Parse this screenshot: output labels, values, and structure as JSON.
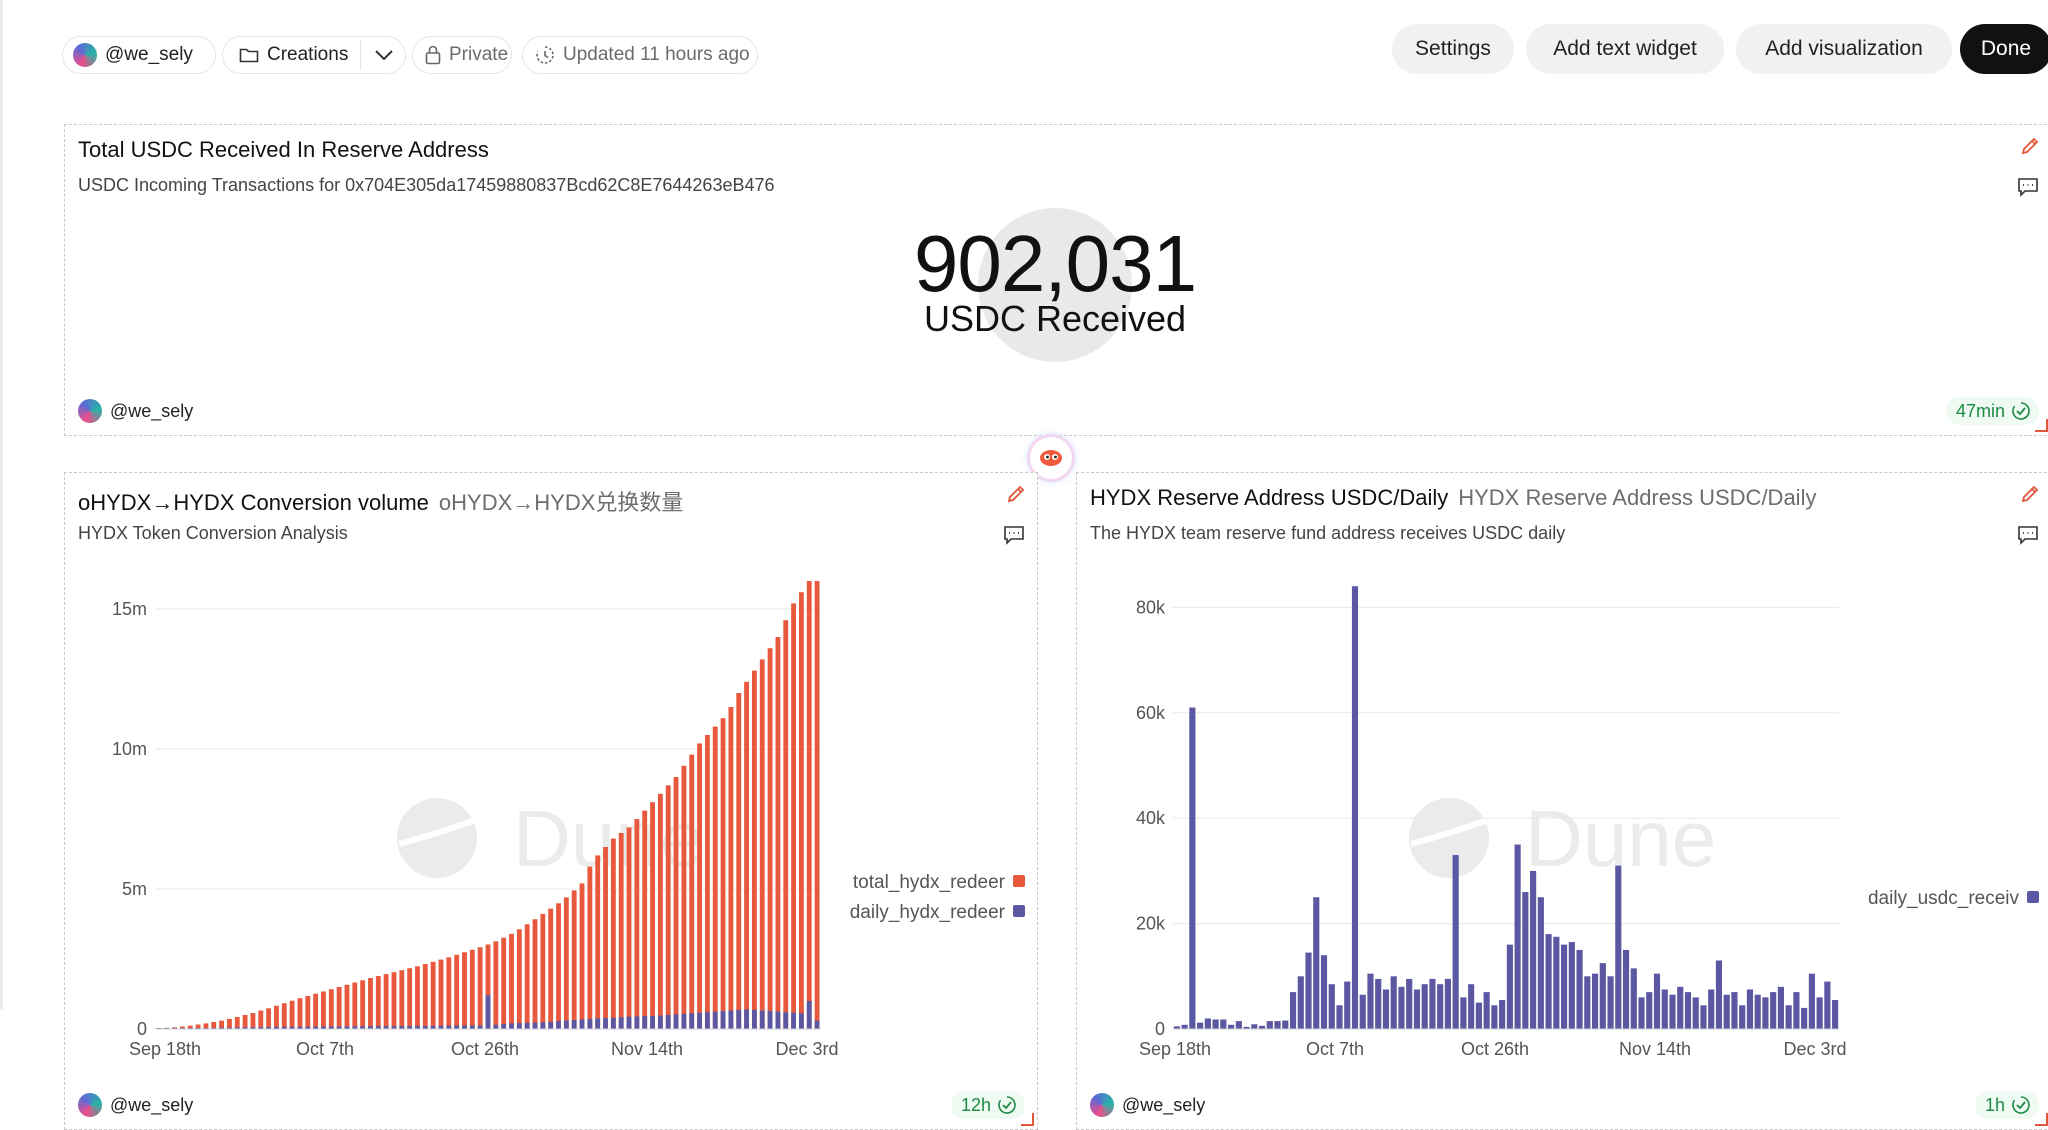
{
  "topbar": {
    "user": "@we_sely",
    "folder": "Creations",
    "privacy": "Private",
    "updated": "Updated 11 hours ago",
    "buttons": {
      "settings": "Settings",
      "add_text": "Add text widget",
      "add_viz": "Add visualization",
      "done": "Done"
    }
  },
  "counter_widget": {
    "title": "Total USDC Received In Reserve Address",
    "subtitle": "USDC Incoming Transactions for 0x704E305da17459880837Bcd62C8E7644263eB476",
    "value": "902,031",
    "label": "USDC Received",
    "author": "@we_sely",
    "refresh": "47min"
  },
  "conversion_widget": {
    "title": "oHYDX→HYDX Conversion volume",
    "title_alt": "oHYDX→HYDX兑换数量",
    "subtitle": "HYDX Token Conversion Analysis",
    "author": "@we_sely",
    "refresh": "12h",
    "watermark": "Dune"
  },
  "reserve_widget": {
    "title": "HYDX Reserve Address USDC/Daily",
    "title_alt": "HYDX Reserve Address USDC/Daily",
    "subtitle": "The HYDX team reserve fund address receives USDC daily",
    "author": "@we_sely",
    "refresh": "1h",
    "watermark": "Dune"
  },
  "colors": {
    "cumulative_bar": "#e8583d",
    "daily_bar": "#5b57a3",
    "refresh_badge_bg": "#eefaf2",
    "refresh_badge_text": "#1e8a45",
    "edit_icon": "#e0573a",
    "done_button": "#111111"
  },
  "icons": [
    "folder-icon",
    "chevron-down-icon",
    "lock-icon",
    "clock-icon",
    "pencil-icon",
    "comment-icon",
    "check-circle-icon",
    "dune-logo-icon"
  ],
  "chart_data": [
    {
      "type": "bar",
      "id": "conversion",
      "xlabel": "",
      "ylabel": "",
      "x_ticks": [
        "Sep 18th",
        "Oct 7th",
        "Oct 26th",
        "Nov 14th",
        "Dec 3rd"
      ],
      "y_ticks": [
        "0",
        "5m",
        "10m",
        "15m"
      ],
      "ylim": [
        0,
        16000000
      ],
      "legend_position": "right",
      "legend": [
        "total_hydx_redeer",
        "daily_hydx_redeer"
      ],
      "series": [
        {
          "name": "total_hydx_redeer",
          "values": [
            20000,
            40000,
            60000,
            90000,
            120000,
            160000,
            200000,
            250000,
            300000,
            360000,
            430000,
            500000,
            570000,
            660000,
            740000,
            830000,
            920000,
            1010000,
            1100000,
            1180000,
            1260000,
            1340000,
            1420000,
            1500000,
            1580000,
            1660000,
            1740000,
            1820000,
            1890000,
            1960000,
            2030000,
            2100000,
            2170000,
            2240000,
            2320000,
            2400000,
            2480000,
            2560000,
            2650000,
            2740000,
            2830000,
            2920000,
            3020000,
            3130000,
            3260000,
            3400000,
            3560000,
            3740000,
            3920000,
            4110000,
            4300000,
            4490000,
            4700000,
            4950000,
            5200000,
            5800000,
            6200000,
            6500000,
            6800000,
            7000000,
            7200000,
            7500000,
            7800000,
            8100000,
            8400000,
            8700000,
            9000000,
            9400000,
            9800000,
            10200000,
            10500000,
            10800000,
            11100000,
            11500000,
            12000000,
            12400000,
            12800000,
            13200000,
            13600000,
            14000000,
            14600000,
            15200000,
            15600000,
            16000000,
            16000000
          ]
        },
        {
          "name": "daily_hydx_redeer",
          "values": [
            15000,
            18000,
            20000,
            25000,
            28000,
            30000,
            35000,
            40000,
            45000,
            50000,
            55000,
            60000,
            62000,
            65000,
            70000,
            75000,
            80000,
            80000,
            82000,
            85000,
            85000,
            88000,
            90000,
            90000,
            92000,
            95000,
            95000,
            98000,
            100000,
            100000,
            100000,
            105000,
            108000,
            110000,
            110000,
            112000,
            115000,
            118000,
            120000,
            120000,
            122000,
            125000,
            1200000,
            150000,
            180000,
            200000,
            210000,
            220000,
            230000,
            240000,
            250000,
            280000,
            300000,
            320000,
            340000,
            360000,
            380000,
            390000,
            400000,
            420000,
            440000,
            450000,
            460000,
            470000,
            480000,
            500000,
            520000,
            540000,
            560000,
            580000,
            600000,
            620000,
            640000,
            660000,
            680000,
            700000,
            680000,
            660000,
            640000,
            620000,
            600000,
            580000,
            560000,
            1000000,
            300000
          ]
        }
      ]
    },
    {
      "type": "bar",
      "id": "reserve",
      "xlabel": "",
      "ylabel": "",
      "x_ticks": [
        "Sep 18th",
        "Oct 7th",
        "Oct 26th",
        "Nov 14th",
        "Dec 3rd"
      ],
      "y_ticks": [
        "0",
        "20k",
        "40k",
        "60k",
        "80k"
      ],
      "ylim": [
        0,
        85000
      ],
      "legend_position": "right",
      "legend": [
        "daily_usdc_receiv"
      ],
      "series": [
        {
          "name": "daily_usdc_receiv",
          "values": [
            500,
            800,
            61000,
            1200,
            2000,
            1800,
            1800,
            800,
            1500,
            400,
            900,
            600,
            1500,
            1500,
            1600,
            7000,
            10000,
            14500,
            25000,
            14000,
            8500,
            4500,
            9000,
            84000,
            6500,
            10500,
            9500,
            7500,
            10000,
            8000,
            9500,
            7500,
            8500,
            9500,
            8500,
            9500,
            33000,
            6000,
            8500,
            5000,
            7000,
            4500,
            5500,
            16000,
            35000,
            26000,
            30000,
            25000,
            18000,
            17500,
            16000,
            16500,
            15000,
            10000,
            10500,
            12500,
            10000,
            31000,
            15000,
            11500,
            6000,
            7000,
            10500,
            7500,
            6500,
            8000,
            7000,
            6000,
            4500,
            7500,
            13000,
            6500,
            7000,
            4500,
            7500,
            6500,
            6000,
            7000,
            8000,
            4500,
            7000,
            4000,
            10500,
            6000,
            9000,
            5500
          ]
        }
      ]
    }
  ]
}
